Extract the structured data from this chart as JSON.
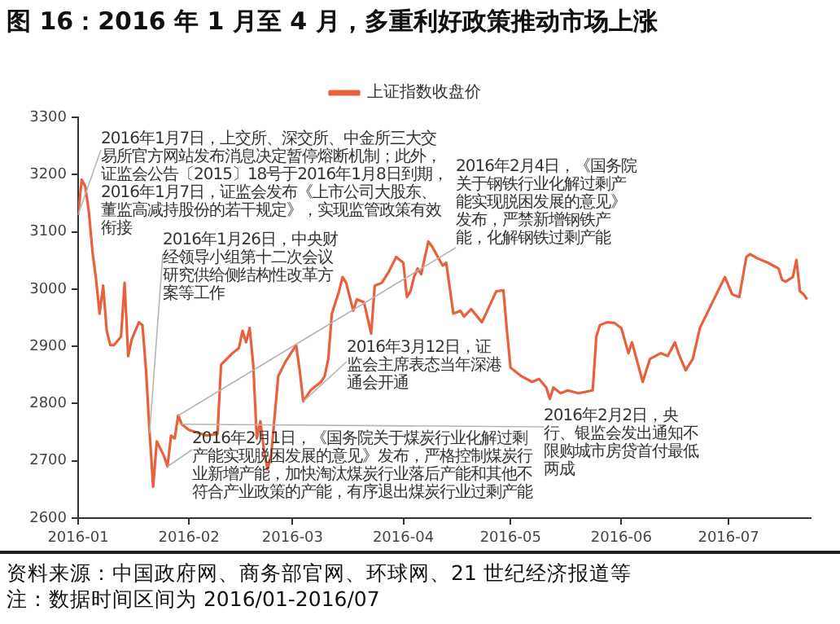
{
  "chart_data": {
    "type": "line",
    "title": "图 16：2016 年 1 月至 4 月，多重利好政策推动市场上涨",
    "x": [
      "2016-01-01",
      "2016-01-02",
      "2016-01-03",
      "2016-01-04",
      "2016-01-05",
      "2016-01-06",
      "2016-01-07",
      "2016-01-08",
      "2016-01-09",
      "2016-01-10",
      "2016-01-11",
      "2016-01-13",
      "2016-01-14",
      "2016-01-15",
      "2016-01-16",
      "2016-01-18",
      "2016-01-19",
      "2016-01-20",
      "2016-01-21",
      "2016-01-22",
      "2016-01-23",
      "2016-01-25",
      "2016-01-26",
      "2016-01-27",
      "2016-01-28",
      "2016-01-29",
      "2016-01-30",
      "2016-02-01",
      "2016-02-06",
      "2016-02-09",
      "2016-02-10",
      "2016-02-13",
      "2016-02-15",
      "2016-02-16",
      "2016-02-17",
      "2016-02-18",
      "2016-02-19",
      "2016-02-20",
      "2016-02-21",
      "2016-02-22",
      "2016-02-23",
      "2016-02-24",
      "2016-02-26",
      "2016-02-28",
      "2016-03-02",
      "2016-03-03",
      "2016-03-04",
      "2016-03-06",
      "2016-03-09",
      "2016-03-10",
      "2016-03-11",
      "2016-03-12",
      "2016-03-14",
      "2016-03-15",
      "2016-03-16",
      "2016-03-18",
      "2016-03-19",
      "2016-03-21",
      "2016-03-23",
      "2016-03-24",
      "2016-03-26",
      "2016-03-28",
      "2016-03-30",
      "2016-04-01",
      "2016-04-02",
      "2016-04-03",
      "2016-04-04",
      "2016-04-05",
      "2016-04-06",
      "2016-04-08",
      "2016-04-09",
      "2016-04-12",
      "2016-04-13",
      "2016-04-15",
      "2016-04-17",
      "2016-04-18",
      "2016-04-20",
      "2016-04-23",
      "2016-04-27",
      "2016-04-29",
      "2016-04-30",
      "2016-05-01",
      "2016-05-04",
      "2016-05-07",
      "2016-05-09",
      "2016-05-11",
      "2016-05-12",
      "2016-05-13",
      "2016-05-15",
      "2016-05-17",
      "2016-05-20",
      "2016-05-24",
      "2016-05-25",
      "2016-05-26",
      "2016-05-28",
      "2016-05-30",
      "2016-06-01",
      "2016-06-03",
      "2016-06-04",
      "2016-06-07",
      "2016-06-09",
      "2016-06-12",
      "2016-06-14",
      "2016-06-16",
      "2016-06-17",
      "2016-06-19",
      "2016-06-21",
      "2016-06-23",
      "2016-06-28",
      "2016-06-30",
      "2016-07-02",
      "2016-07-04",
      "2016-07-06",
      "2016-07-07",
      "2016-07-09",
      "2016-07-12",
      "2016-07-15",
      "2016-07-16",
      "2016-07-17",
      "2016-07-19",
      "2016-07-20",
      "2016-07-21",
      "2016-07-22",
      "2016-07-23"
    ],
    "series": [
      {
        "name": "上证指数收盘价",
        "color": "#e8603c",
        "values": [
          3130,
          3191,
          3179,
          3135,
          3066,
          3018,
          2957,
          3006,
          2927,
          2902,
          2902,
          2917,
          3011,
          2883,
          2912,
          2942,
          2937,
          2858,
          2749,
          2655,
          2734,
          2709,
          2690,
          2744,
          2739,
          2779,
          2764,
          2754,
          2744,
          2747,
          2868,
          2887,
          2897,
          2927,
          2907,
          2932,
          2868,
          2739,
          2769,
          2719,
          2685,
          2709,
          2848,
          2873,
          2902,
          2858,
          2804,
          2823,
          2838,
          2848,
          2878,
          2957,
          2996,
          3021,
          3011,
          2962,
          2982,
          2977,
          2922,
          3006,
          3011,
          3031,
          3056,
          3046,
          2986,
          2996,
          3021,
          3036,
          3026,
          3083,
          3075,
          3041,
          3046,
          2957,
          2962,
          2952,
          2965,
          2942,
          2996,
          2998,
          2927,
          2863,
          2848,
          2838,
          2843,
          2828,
          2808,
          2828,
          2818,
          2823,
          2818,
          2823,
          2917,
          2937,
          2942,
          2941,
          2932,
          2888,
          2907,
          2838,
          2878,
          2888,
          2883,
          2907,
          2888,
          2858,
          2878,
          2932,
          2996,
          3021,
          2991,
          2986,
          3056,
          3061,
          3054,
          3046,
          3036,
          3016,
          3013,
          3021,
          3051,
          2996,
          2991,
          2982
        ]
      }
    ],
    "xlim": [
      "2016-01-01",
      "2016-07-24"
    ],
    "xticks": [
      "2016-01",
      "2016-02",
      "2016-03",
      "2016-04",
      "2016-05",
      "2016-06",
      "2016-07"
    ],
    "ylim": [
      2600,
      3300
    ],
    "yticks": [
      2600,
      2700,
      2800,
      2900,
      3000,
      3100,
      3200,
      3300
    ],
    "grid": false,
    "legend": "top",
    "marker": "none",
    "line_style": "solid",
    "annotations": [
      {
        "text": "2016年1月7日，上交所、深交所、中金所三大交易所官方网站发布消息决定暂停熔断机制；此外，证监会公告〔2015〕18号于2016年1月8日到期，2016年1月7日，证监会发布《上市公司大股东、董监高减持股份的若干规定》，实现监管政策有效衔接",
        "x": "2016-01-01",
        "y": 3130
      },
      {
        "text": "2016年1月26日，中央财经领导小组第十二次会议研究供给侧结构性改革方案等工作",
        "x": "2016-01-21",
        "y": 2749
      },
      {
        "text": "2016年2月4日，《国务院关于钢铁行业化解过剩产能实现脱困发展的意见》发布，严禁新增钢铁产能，化解钢铁过剩产能",
        "x": "2016-01-29",
        "y": 2779
      },
      {
        "text": "2016年3月12日，证监会主席表态当年深港通会开通",
        "x": "2016-03-04",
        "y": 2804
      },
      {
        "text": "2016年2月1日，《国务院关于煤炭行业化解过剩产能实现脱困发展的意见》发布，严格控制煤炭行业新增产能，加快淘汰煤炭行业落后产能和其他不符合产业政策的产能，有序退出煤炭行业过剩产能",
        "x": "2016-01-26",
        "y": 2690
      },
      {
        "text": "2016年2月2日，央行、银监会发出通知不限购城市房贷首付最低两成",
        "x": "2016-01-30",
        "y": 2764
      },
      "资料来源：中国政府网、商务部官网、环球网、21 世纪经济报道等",
      "注：数据时间区间为 2016/01-2016/07"
    ]
  }
}
